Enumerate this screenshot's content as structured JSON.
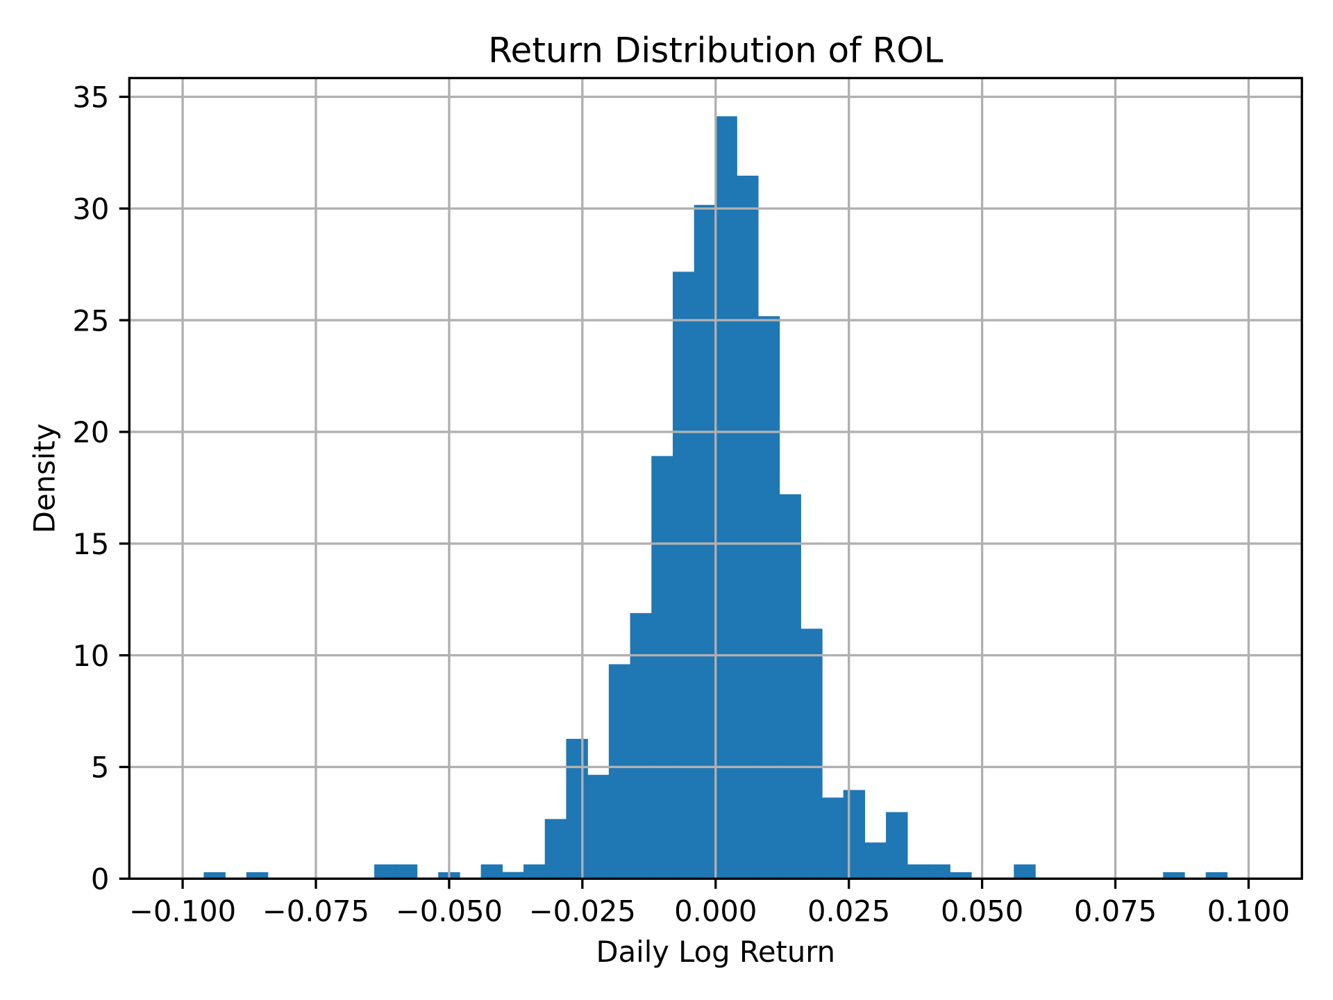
{
  "chart_data": {
    "type": "bar",
    "subtype": "histogram",
    "title": "Return Distribution of ROL",
    "xlabel": "Daily Log Return",
    "ylabel": "Density",
    "bin_start": -0.1,
    "bin_width": 0.004,
    "densities": [
      0,
      0.29,
      0,
      0.29,
      0,
      0,
      0,
      0,
      0,
      0.64,
      0.64,
      0,
      0.29,
      0,
      0.64,
      0.3,
      0.64,
      2.67,
      6.26,
      4.65,
      9.6,
      11.89,
      18.92,
      27.17,
      30.16,
      34.13,
      31.47,
      25.18,
      17.21,
      11.19,
      3.63,
      3.97,
      1.62,
      2.98,
      0.64,
      0.64,
      0.29,
      0,
      0,
      0.64,
      0,
      0,
      0,
      0,
      0,
      0,
      0.29,
      0,
      0.29,
      0
    ],
    "xlim": [
      -0.11,
      0.11
    ],
    "ylim": [
      0,
      35.84
    ],
    "xticks": [
      {
        "value": -0.1,
        "label": "−0.100"
      },
      {
        "value": -0.075,
        "label": "−0.075"
      },
      {
        "value": -0.05,
        "label": "−0.050"
      },
      {
        "value": -0.025,
        "label": "−0.025"
      },
      {
        "value": 0.0,
        "label": "0.000"
      },
      {
        "value": 0.025,
        "label": "0.025"
      },
      {
        "value": 0.05,
        "label": "0.050"
      },
      {
        "value": 0.075,
        "label": "0.075"
      },
      {
        "value": 0.1,
        "label": "0.100"
      }
    ],
    "yticks": [
      {
        "value": 0,
        "label": "0"
      },
      {
        "value": 5,
        "label": "5"
      },
      {
        "value": 10,
        "label": "10"
      },
      {
        "value": 15,
        "label": "15"
      },
      {
        "value": 20,
        "label": "20"
      },
      {
        "value": 25,
        "label": "25"
      },
      {
        "value": 30,
        "label": "30"
      },
      {
        "value": 35,
        "label": "35"
      }
    ],
    "grid": true,
    "legend": null,
    "colors": {
      "bar_fill": "#1f77b4",
      "grid_line": "#b0b0b0",
      "axis_line": "#000000",
      "text": "#000000",
      "background": "#ffffff"
    }
  }
}
